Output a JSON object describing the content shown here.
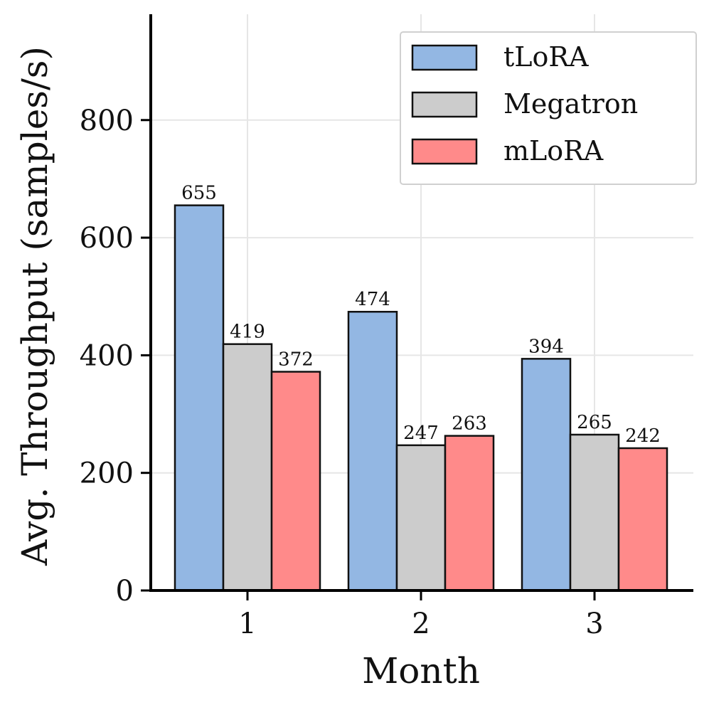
{
  "chart_data": {
    "type": "bar",
    "xlabel": "Month",
    "ylabel": "Avg. Throughput (samples/s)",
    "categories": [
      "1",
      "2",
      "3"
    ],
    "series": [
      {
        "name": "tLoRA",
        "color": "#93b7e3",
        "values": [
          655,
          474,
          394
        ]
      },
      {
        "name": "Megatron",
        "color": "#cccccc",
        "values": [
          419,
          247,
          265
        ]
      },
      {
        "name": "mLoRA",
        "color": "#ff8a8a",
        "values": [
          372,
          263,
          242
        ]
      }
    ],
    "ylim": [
      0,
      980
    ],
    "yticks": [
      0,
      200,
      400,
      600,
      800
    ],
    "grid": true,
    "legend_position": "top-right"
  }
}
